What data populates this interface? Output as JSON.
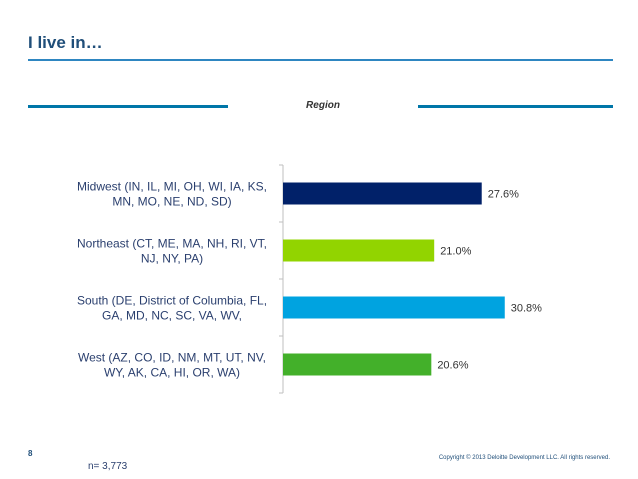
{
  "page": {
    "title": "I live in…",
    "band_label": "Region",
    "page_number": "8",
    "sample_size": "n= 3,773",
    "copyright": "Copyright © 2013 Deloitte Development LLC. All rights reserved."
  },
  "chart_data": {
    "type": "bar",
    "orientation": "horizontal",
    "categories": [
      [
        "Midwest (IN, IL, MI, OH, WI, IA, KS,",
        "MN, MO, NE, ND, SD)"
      ],
      [
        "Northeast (CT, ME, MA, NH, RI, VT,",
        "NJ, NY, PA)"
      ],
      [
        "South (DE, District of Columbia, FL,",
        "GA, MD, NC, SC, VA, WV,"
      ],
      [
        "West (AZ, CO, ID, NM, MT, UT, NV,",
        "WY, AK, CA, HI, OR, WA)"
      ]
    ],
    "values": [
      27.6,
      21.0,
      30.8,
      20.6
    ],
    "value_labels": [
      "27.6%",
      "21.0%",
      "30.8%",
      "20.6%"
    ],
    "colors": [
      "#012169",
      "#92d400",
      "#00a3e0",
      "#43b02a"
    ],
    "xlim": [
      0,
      35
    ],
    "grid": false,
    "legend": "none"
  }
}
